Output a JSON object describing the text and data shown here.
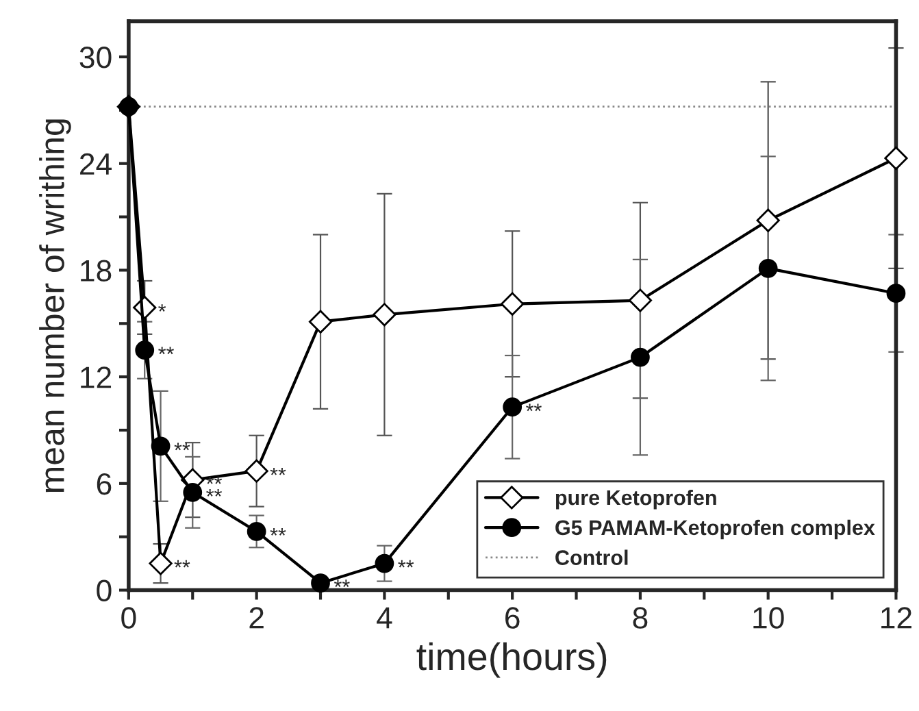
{
  "chart_data": {
    "type": "line",
    "xlabel": "time(hours)",
    "ylabel": "mean number of writhing",
    "x": [
      0,
      0.25,
      0.5,
      1,
      2,
      3,
      4,
      6,
      8,
      10,
      12
    ],
    "series": [
      {
        "name": "pure Ketoprofen",
        "color": "#000000",
        "marker": "diamond",
        "values": [
          27.2,
          15.9,
          1.5,
          6.2,
          6.7,
          15.1,
          15.5,
          16.1,
          16.3,
          20.8,
          24.3
        ],
        "errors": [
          null,
          1.5,
          1.1,
          2.1,
          2.0,
          4.9,
          6.8,
          4.1,
          5.5,
          7.8,
          6.2
        ]
      },
      {
        "name": "G5 PAMAM-Ketoprofen complex",
        "color": "#000000",
        "marker": "circle",
        "values": [
          27.2,
          13.5,
          8.1,
          5.5,
          3.3,
          0.4,
          1.5,
          10.3,
          13.1,
          18.1,
          16.7
        ],
        "errors": [
          null,
          1.6,
          3.1,
          2.0,
          0.9,
          null,
          1.0,
          2.9,
          5.5,
          6.3,
          3.3
        ]
      }
    ],
    "ref_lines": [
      {
        "axis": "y",
        "value": 27.2,
        "label": "Control",
        "color": "#888888",
        "line_style": "dotted"
      }
    ],
    "annotations": [
      {
        "text": "*",
        "x": 0.25,
        "y": 15.9
      },
      {
        "text": "**",
        "x": 0.5,
        "y": 1.5
      },
      {
        "text": "**",
        "x": 1,
        "y": 6.2
      },
      {
        "text": "**",
        "x": 2,
        "y": 6.7
      },
      {
        "text": "**",
        "x": 0.25,
        "y": 13.5
      },
      {
        "text": "**",
        "x": 0.5,
        "y": 8.1
      },
      {
        "text": "**",
        "x": 1,
        "y": 5.5
      },
      {
        "text": "**",
        "x": 2,
        "y": 3.3
      },
      {
        "text": "**",
        "x": 3,
        "y": 0.4
      },
      {
        "text": "**",
        "x": 4,
        "y": 1.5
      },
      {
        "text": "**",
        "x": 6,
        "y": 10.3
      }
    ],
    "xlim": [
      0,
      12
    ],
    "ylim": [
      0,
      32
    ],
    "xticks": [
      0,
      {
        "value": 1,
        "label": null
      },
      2,
      {
        "value": 3,
        "label": null
      },
      4,
      {
        "value": 5,
        "label": null
      },
      6,
      {
        "value": 7,
        "label": null
      },
      8,
      {
        "value": 9,
        "label": null
      },
      10,
      {
        "value": 11,
        "label": null
      },
      12
    ],
    "yticks": [
      0,
      {
        "value": 3,
        "label": null
      },
      6,
      {
        "value": 9,
        "label": null
      },
      12,
      {
        "value": 15,
        "label": null
      },
      18,
      {
        "value": 21,
        "label": null
      },
      24,
      {
        "value": 27,
        "label": null
      },
      30
    ],
    "legend": "lower right",
    "line_style": "solid"
  }
}
